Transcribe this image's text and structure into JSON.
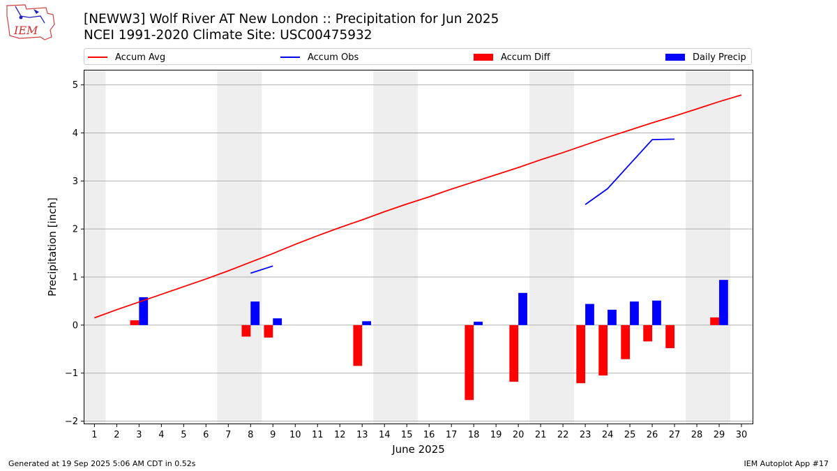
{
  "header": {
    "logo_text": "IEM",
    "title_line1": "[NEWW3] Wolf River  AT New London :: Precipitation for Jun 2025",
    "title_line2": "NCEI 1991-2020 Climate Site: USC00475932"
  },
  "legend": {
    "placement": "top",
    "items": [
      {
        "label": "Accum Avg",
        "kind": "line",
        "color": "#ff0000"
      },
      {
        "label": "Accum Obs",
        "kind": "line",
        "color": "#0000ff"
      },
      {
        "label": "Accum Diff",
        "kind": "box",
        "color": "#ff0000"
      },
      {
        "label": "Daily Precip",
        "kind": "box",
        "color": "#0000ff"
      }
    ]
  },
  "footer": {
    "left": "Generated at 19 Sep 2025 5:06 AM CDT in 0.52s",
    "right": "IEM Autoplot App #17"
  },
  "chart_data": {
    "type": "bar",
    "xlabel": "June 2025",
    "ylabel": "Precipitation [inch]",
    "x": [
      1,
      2,
      3,
      4,
      5,
      6,
      7,
      8,
      9,
      10,
      11,
      12,
      13,
      14,
      15,
      16,
      17,
      18,
      19,
      20,
      21,
      22,
      23,
      24,
      25,
      26,
      27,
      28,
      29,
      30
    ],
    "xlim": [
      0.55,
      30.5
    ],
    "ylim": [
      -2.05,
      5.3
    ],
    "yticks": [
      -2,
      -1,
      0,
      1,
      2,
      3,
      4,
      5
    ],
    "ytick_labels": [
      "−2",
      "−1",
      "0",
      "1",
      "2",
      "3",
      "4",
      "5"
    ],
    "grid": true,
    "weekend_shading": [
      [
        0.55,
        1.5
      ],
      [
        6.5,
        8.5
      ],
      [
        13.5,
        15.5
      ],
      [
        20.5,
        22.5
      ],
      [
        27.5,
        29.5
      ]
    ],
    "shade_color": "#eeeeee",
    "series": [
      {
        "name": "Accum Avg",
        "kind": "line",
        "color": "#ff0000",
        "values": [
          0.15,
          0.32,
          0.48,
          0.64,
          0.8,
          0.96,
          1.13,
          1.31,
          1.49,
          1.68,
          1.86,
          2.03,
          2.19,
          2.36,
          2.52,
          2.67,
          2.83,
          2.98,
          3.13,
          3.28,
          3.44,
          3.59,
          3.75,
          3.91,
          4.06,
          4.21,
          4.35,
          4.5,
          4.65,
          4.79
        ]
      },
      {
        "name": "Accum Obs",
        "kind": "line",
        "color": "#0000ff",
        "values": [
          null,
          null,
          null,
          null,
          null,
          null,
          null,
          1.08,
          1.23,
          null,
          null,
          null,
          null,
          null,
          null,
          null,
          null,
          null,
          null,
          null,
          null,
          null,
          2.51,
          2.84,
          3.35,
          3.86,
          3.87,
          null,
          null,
          null
        ]
      },
      {
        "name": "Accum Diff",
        "kind": "bar",
        "color": "#ff0000",
        "offset": "left",
        "values": [
          null,
          null,
          0.1,
          null,
          null,
          null,
          null,
          -0.24,
          -0.26,
          null,
          null,
          null,
          -0.85,
          null,
          null,
          null,
          null,
          -1.56,
          null,
          -1.18,
          null,
          null,
          -1.21,
          -1.05,
          -0.71,
          -0.34,
          -0.48,
          null,
          0.16,
          null
        ]
      },
      {
        "name": "Daily Precip",
        "kind": "bar",
        "color": "#0000ff",
        "offset": "right",
        "values": [
          null,
          null,
          0.58,
          null,
          null,
          null,
          null,
          0.49,
          0.14,
          null,
          null,
          null,
          0.08,
          null,
          null,
          null,
          null,
          0.07,
          null,
          0.67,
          null,
          null,
          0.44,
          0.32,
          0.49,
          0.51,
          null,
          null,
          0.94,
          null
        ]
      }
    ]
  }
}
